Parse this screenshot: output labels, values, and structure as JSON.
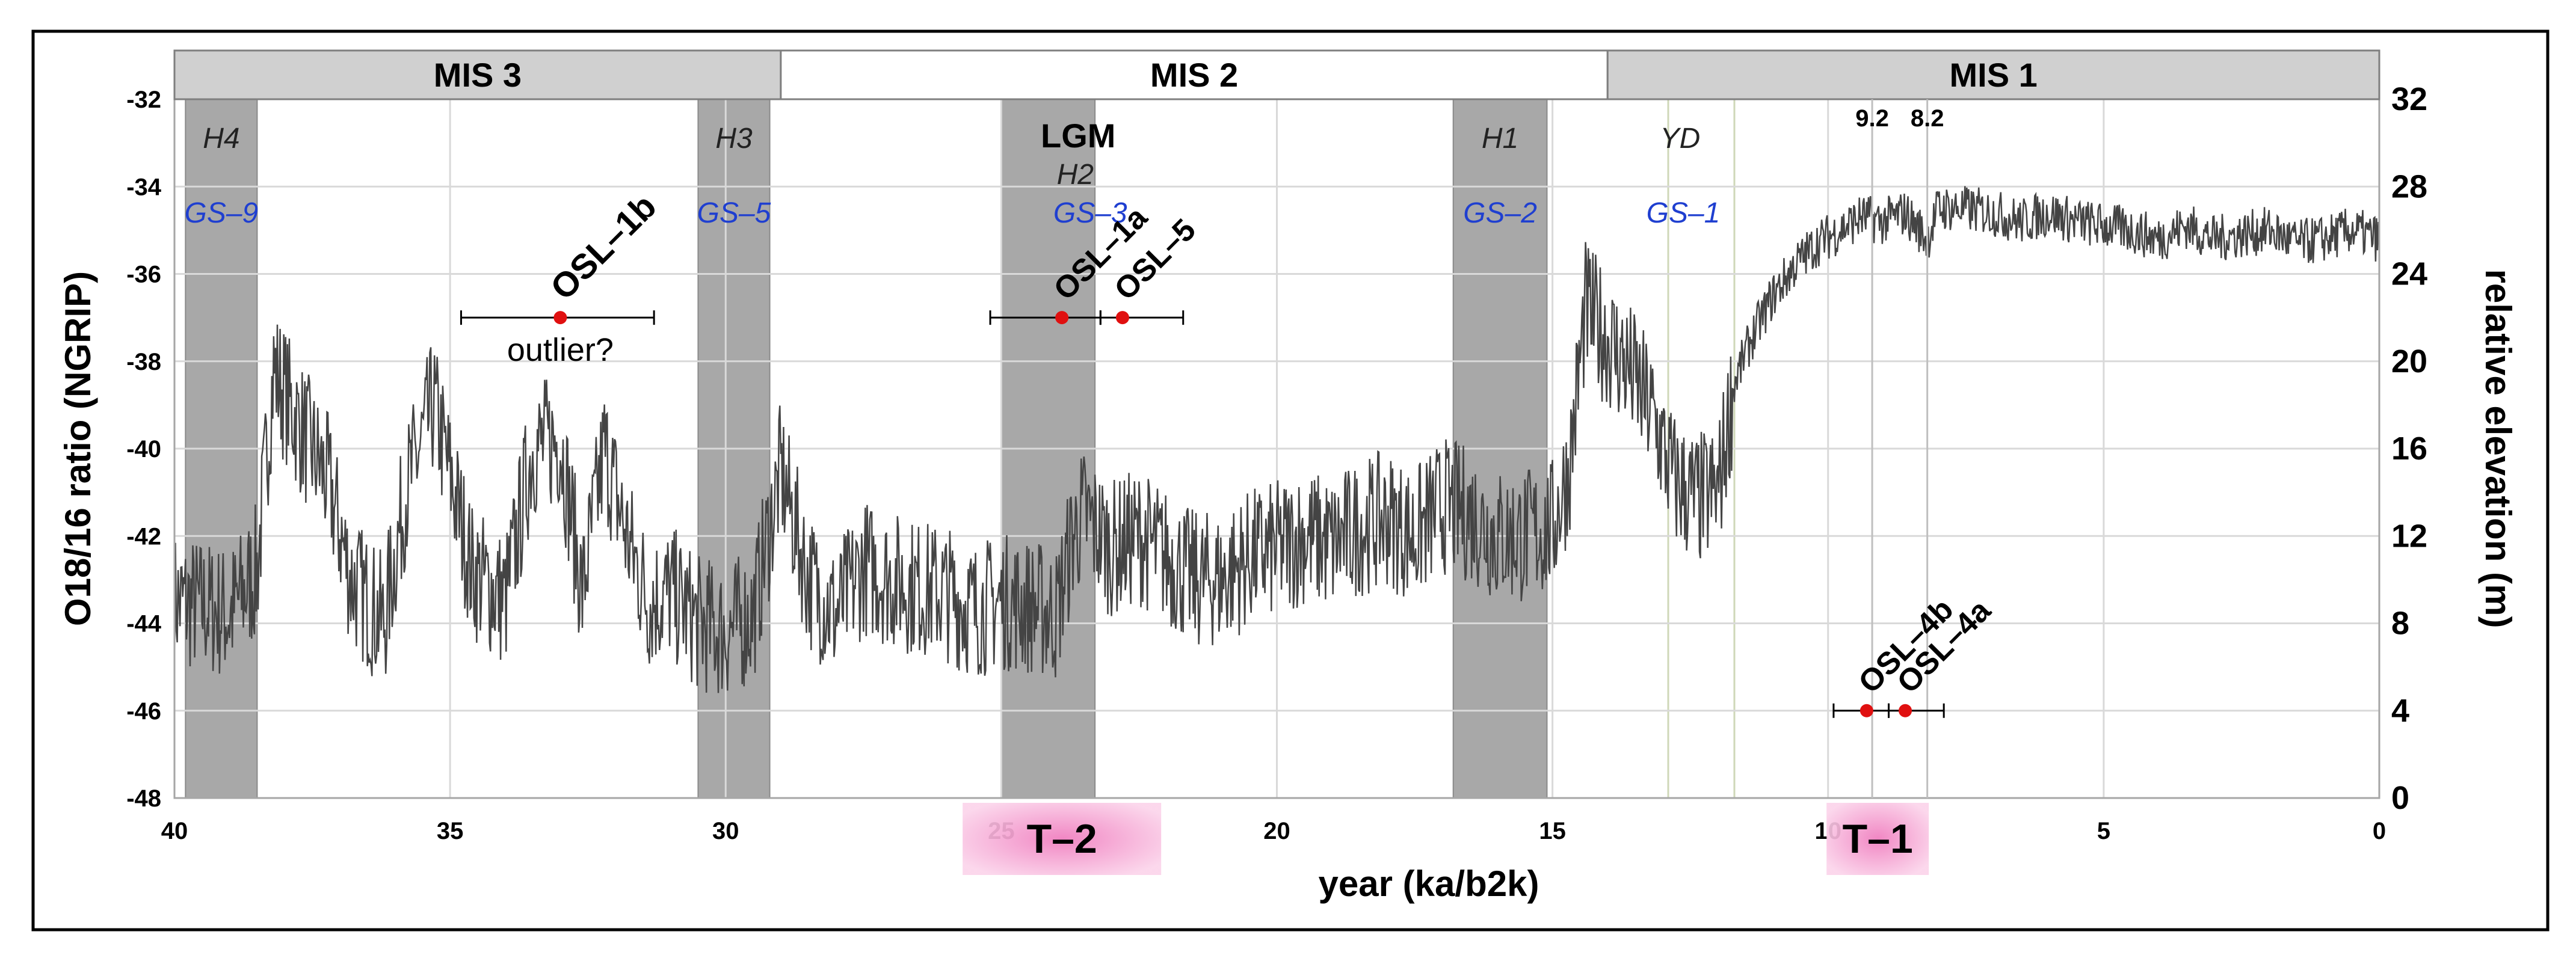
{
  "chart_data": {
    "type": "line",
    "title": "",
    "xlabel": "year (ka/b2k)",
    "ylabel": "O18/16 ratio (NGRIP)",
    "y2label": "relative elevation (m)",
    "xlim": [
      40,
      0
    ],
    "ylim": [
      -48,
      -32
    ],
    "y2lim": [
      0,
      32
    ],
    "x_ticks": [
      "40",
      "35",
      "30",
      "25",
      "20",
      "15",
      "10",
      "5",
      "0"
    ],
    "y_ticks": [
      "-32",
      "-34",
      "-36",
      "-38",
      "-40",
      "-42",
      "-44",
      "-46",
      "-48"
    ],
    "y2_ticks": [
      "32",
      "28",
      "24",
      "20",
      "16",
      "12",
      "8",
      "4",
      "0"
    ],
    "mis_stages": [
      {
        "label": "MIS 3",
        "start": 40,
        "end": 29,
        "color": "#d0d0d0"
      },
      {
        "label": "MIS 2",
        "start": 29,
        "end": 14,
        "color": "#ffffff"
      },
      {
        "label": "MIS 1",
        "start": 14,
        "end": 0,
        "color": "#d0d0d0"
      }
    ],
    "stadial_bands": [
      {
        "event": "H4",
        "stadial": "GS–9",
        "start": 39.8,
        "end": 38.5
      },
      {
        "event": "H3",
        "stadial": "GS–5",
        "start": 30.5,
        "end": 29.2
      },
      {
        "event": "LGM",
        "event2": "H2",
        "stadial": "GS–3",
        "start": 25.0,
        "end": 23.3
      },
      {
        "event": "H1",
        "stadial": "GS–2",
        "start": 16.8,
        "end": 15.1
      }
    ],
    "yd": {
      "event": "YD",
      "stadial": "GS–1",
      "start": 12.9,
      "end": 11.7
    },
    "marker_lines": [
      {
        "label": "9.2",
        "x": 9.2
      },
      {
        "label": "8.2",
        "x": 8.2
      }
    ],
    "osl_samples": [
      {
        "label": "OSL–1b",
        "age": 33.0,
        "err_low": 34.8,
        "err_high": 31.3,
        "elevation": 22,
        "note": "outlier?"
      },
      {
        "label": "OSL–1a",
        "age": 23.9,
        "err_low": 25.2,
        "err_high": 23.2,
        "elevation": 22
      },
      {
        "label": "OSL–5",
        "age": 22.8,
        "err_low": 23.2,
        "err_high": 21.7,
        "elevation": 22
      },
      {
        "label": "OSL–4b",
        "age": 9.3,
        "err_low": 9.9,
        "err_high": 8.9,
        "elevation": 4
      },
      {
        "label": "OSL–4a",
        "age": 8.6,
        "err_low": 8.9,
        "err_high": 7.9,
        "elevation": 4
      }
    ],
    "terminations": [
      {
        "label": "T–2",
        "x": 23.9
      },
      {
        "label": "T–1",
        "x": 9.1
      }
    ],
    "series": [
      {
        "name": "NGRIP δ18O",
        "color": "#444444",
        "x": [
          40.0,
          39.5,
          39.0,
          38.5,
          38.2,
          37.8,
          37.2,
          36.8,
          36.2,
          35.8,
          35.3,
          35.0,
          34.6,
          34.0,
          33.5,
          33.0,
          32.6,
          32.2,
          31.8,
          31.4,
          31.0,
          30.5,
          30.0,
          29.5,
          29.0,
          28.5,
          28.0,
          27.5,
          27.0,
          26.5,
          26.0,
          25.5,
          25.0,
          24.5,
          24.0,
          23.7,
          23.5,
          23.0,
          22.5,
          22.0,
          21.5,
          21.0,
          20.5,
          20.0,
          19.5,
          19.0,
          18.5,
          18.0,
          17.5,
          17.0,
          16.5,
          16.0,
          15.5,
          15.0,
          14.7,
          14.4,
          14.0,
          13.6,
          13.2,
          12.8,
          12.4,
          12.0,
          11.7,
          11.4,
          11.0,
          10.6,
          10.2,
          9.8,
          9.4,
          9.0,
          8.6,
          8.2,
          8.0,
          7.6,
          7.0,
          6.5,
          6.0,
          5.5,
          5.0,
          4.5,
          4.0,
          3.5,
          3.0,
          2.5,
          2.0,
          1.5,
          1.0,
          0.5,
          0.0
        ],
        "values": [
          -43.5,
          -43.6,
          -43.8,
          -42.8,
          -38.2,
          -39.3,
          -40.8,
          -43.0,
          -44.0,
          -41.0,
          -39.0,
          -40.6,
          -42.8,
          -43.5,
          -40.0,
          -39.8,
          -43.3,
          -40.0,
          -42.0,
          -43.5,
          -43.3,
          -44.0,
          -44.2,
          -43.8,
          -40.5,
          -43.0,
          -43.8,
          -42.7,
          -43.0,
          -43.2,
          -43.3,
          -43.7,
          -43.5,
          -43.6,
          -43.8,
          -42.0,
          -41.5,
          -42.3,
          -42.0,
          -42.5,
          -43.0,
          -43.0,
          -42.5,
          -42.3,
          -42.0,
          -42.2,
          -41.8,
          -41.6,
          -42.0,
          -41.3,
          -41.5,
          -42.0,
          -42.0,
          -41.8,
          -40.5,
          -36.8,
          -37.5,
          -38.2,
          -39.2,
          -40.7,
          -41.2,
          -41.0,
          -38.5,
          -37.5,
          -36.5,
          -35.8,
          -35.3,
          -35.0,
          -34.7,
          -34.8,
          -34.6,
          -35.2,
          -34.5,
          -34.5,
          -34.6,
          -34.8,
          -34.6,
          -34.8,
          -34.9,
          -35.0,
          -35.2,
          -34.9,
          -35.2,
          -35.1,
          -35.0,
          -35.3,
          -35.2,
          -35.0,
          -35.2
        ]
      }
    ]
  }
}
